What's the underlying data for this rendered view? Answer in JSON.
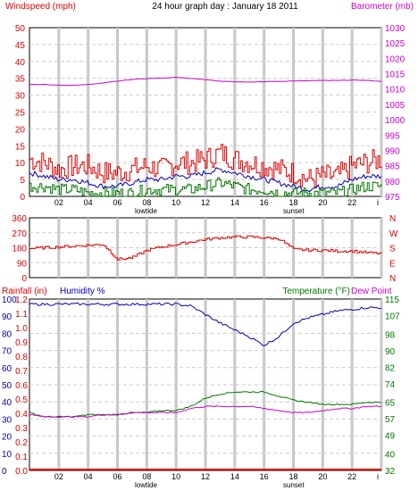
{
  "header": {
    "left_label": "Windspeed (mph)",
    "title": "24 hour graph day : January 18 2011",
    "right_label": "Barometer (mb)"
  },
  "bottom_header": {
    "rainfall": "Rainfall (in)",
    "humidity": "Humidity %",
    "temperature": "Temperature (°F)",
    "dewpoint": "Dew Point"
  },
  "x_ticks": [
    "02",
    "04",
    "06",
    "08",
    "10",
    "12",
    "14",
    "16",
    "18",
    "20",
    "22",
    "i"
  ],
  "events": {
    "low": "lowtide",
    "set": "sunset"
  },
  "colors": {
    "wind_axis": "#dd0000",
    "baro": "#cc00cc",
    "humidity": "#0000bb",
    "temp": "#007700",
    "dew": "#cc00cc",
    "rain": "#dd0000",
    "grid_minor": "#cccccc",
    "grid_major": "#c8c8c8"
  },
  "chart_data": [
    {
      "type": "line",
      "name": "wind_barometer",
      "x": [
        0,
        1,
        2,
        3,
        4,
        5,
        6,
        7,
        8,
        9,
        10,
        11,
        12,
        13,
        14,
        15,
        16,
        17,
        18,
        19,
        20,
        21,
        22,
        23,
        24
      ],
      "left_axis": {
        "label": "Windspeed (mph)",
        "ylim": [
          0,
          50
        ],
        "ticks": [
          0,
          5,
          10,
          15,
          20,
          25,
          30,
          35,
          40,
          45,
          50
        ]
      },
      "right_axis": {
        "label": "Barometer (mb)",
        "ylim": [
          975,
          1030
        ],
        "ticks": [
          975,
          980,
          985,
          990,
          995,
          1000,
          1005,
          1010,
          1015,
          1020,
          1025,
          1030
        ]
      },
      "series": [
        {
          "key": "gust",
          "color": "#dd0000",
          "axis": "left",
          "values": [
            11,
            10,
            8,
            9,
            9,
            7,
            7,
            8,
            9,
            8,
            10,
            10,
            11,
            13,
            11,
            10,
            9,
            8,
            7,
            5,
            6,
            6,
            9,
            10,
            11
          ]
        },
        {
          "key": "avg",
          "color": "#0000bb",
          "axis": "left",
          "values": [
            7,
            6,
            5,
            5,
            4,
            3,
            3,
            4,
            5,
            5,
            6,
            6,
            7,
            8,
            7,
            6,
            5,
            4,
            3,
            2,
            3,
            3,
            5,
            6,
            6
          ]
        },
        {
          "key": "low",
          "color": "#007700",
          "axis": "left",
          "values": [
            3,
            3,
            2,
            2,
            1,
            1,
            1,
            1,
            2,
            2,
            2,
            2,
            3,
            4,
            3,
            2,
            2,
            1,
            1,
            1,
            1,
            1,
            2,
            3,
            3
          ]
        },
        {
          "key": "barometer",
          "color": "#cc00cc",
          "axis": "right",
          "values": [
            1011.5,
            1011.5,
            1011.3,
            1011.2,
            1011.5,
            1012,
            1012.6,
            1013.1,
            1013.4,
            1013.6,
            1013.8,
            1013.5,
            1013.0,
            1012.6,
            1012.3,
            1012.3,
            1012.4,
            1012.5,
            1012.6,
            1012.7,
            1012.8,
            1012.8,
            1012.9,
            1012.8,
            1012.5
          ]
        }
      ],
      "grid": true
    },
    {
      "type": "line",
      "name": "wind_direction",
      "x": [
        0,
        1,
        2,
        3,
        4,
        5,
        6,
        7,
        8,
        9,
        10,
        11,
        12,
        13,
        14,
        15,
        16,
        17,
        18,
        19,
        20,
        21,
        22,
        23,
        24
      ],
      "left_axis": {
        "ylim": [
          0,
          360
        ],
        "ticks": [
          0,
          90,
          180,
          270,
          360
        ]
      },
      "right_axis": {
        "ticks": [
          "N",
          "E",
          "S",
          "W",
          "N"
        ]
      },
      "series": [
        {
          "key": "direction",
          "color": "#dd0000",
          "values": [
            175,
            180,
            185,
            190,
            195,
            200,
            110,
            120,
            165,
            185,
            200,
            215,
            230,
            240,
            245,
            245,
            240,
            235,
            170,
            165,
            165,
            160,
            160,
            150,
            145
          ]
        }
      ],
      "grid": true
    },
    {
      "type": "line",
      "name": "rain_humidity_temperature",
      "x": [
        0,
        1,
        2,
        3,
        4,
        5,
        6,
        7,
        8,
        9,
        10,
        11,
        12,
        13,
        14,
        15,
        16,
        17,
        18,
        19,
        20,
        21,
        22,
        23,
        24
      ],
      "left_axis_rain": {
        "label": "Rainfall (in)",
        "ticks": [
          "0.0",
          "0.1",
          "0.2",
          "0.3",
          "0.4",
          "0.5",
          "0.6",
          "0.7",
          "0.8",
          "0.9",
          "1.0",
          "1.1",
          "1.2"
        ]
      },
      "left_axis_humidity": {
        "label": "Humidity %",
        "ticks": [
          0,
          10,
          20,
          30,
          40,
          50,
          60,
          70,
          80,
          90,
          100
        ]
      },
      "right_axis": {
        "label": "Temperature (°F)",
        "ylim": [
          32,
          115
        ],
        "ticks": [
          32,
          40,
          49,
          57,
          65,
          74,
          82,
          90,
          98,
          107,
          115
        ]
      },
      "series": [
        {
          "key": "humidity",
          "color": "#0000bb",
          "axis": "humidity",
          "values": [
            97,
            97,
            97,
            97,
            97,
            97,
            97,
            97,
            97,
            97,
            97,
            96,
            91,
            86,
            82,
            78,
            73,
            78,
            86,
            89,
            91,
            93,
            94,
            95,
            95
          ]
        },
        {
          "key": "temperature",
          "color": "#007700",
          "axis": "temp",
          "values": [
            60,
            58,
            58,
            58,
            59,
            59,
            59,
            60,
            60,
            61,
            61,
            63,
            67,
            69,
            70,
            70,
            70,
            68,
            66,
            65,
            64,
            64,
            64,
            65,
            65
          ]
        },
        {
          "key": "dewpoint",
          "color": "#cc00cc",
          "axis": "temp",
          "values": [
            59,
            58,
            58,
            58,
            58,
            59,
            59,
            60,
            60,
            60,
            60,
            62,
            63,
            63,
            63,
            63,
            62,
            61,
            60,
            60,
            61,
            62,
            62,
            63,
            63
          ]
        },
        {
          "key": "rainfall",
          "color": "#dd0000",
          "axis": "rain",
          "values": [
            0,
            0,
            0,
            0,
            0,
            0,
            0,
            0,
            0,
            0,
            0,
            0,
            0,
            0,
            0,
            0,
            0,
            0,
            0,
            0,
            0,
            0,
            0,
            0,
            0
          ]
        }
      ],
      "grid": true
    }
  ]
}
